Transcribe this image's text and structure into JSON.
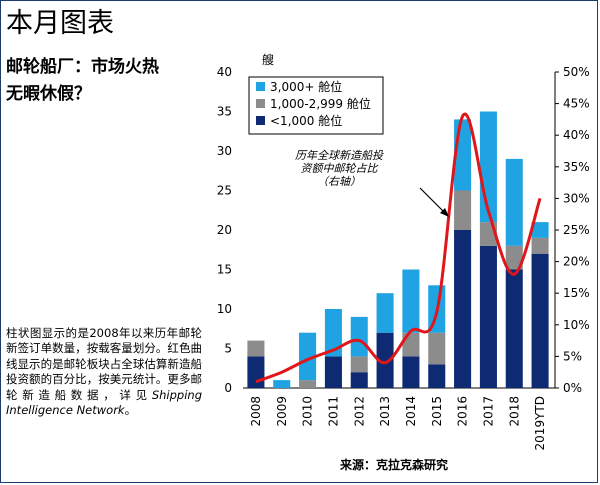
{
  "section_title": "本月图表",
  "headline": [
    "邮轮船厂：市场火热",
    "无暇休假？"
  ],
  "caption": {
    "text": "柱状图显示的是2008年以来历年邮轮新签订单数量，按载客量划分。红色曲线显示的是邮轮板块占全球估算新造船投资额的百分比，按美元统计。更多邮轮新造船数据，详见",
    "italic": "Shipping Intelligence Network",
    "end": "。"
  },
  "source": "来源：克拉克森研究",
  "colors": {
    "large": "#1fa3e3",
    "mid": "#8c8c8c",
    "small": "#0d2a73",
    "line": "#e0161b"
  },
  "chart_data": {
    "type": "bar",
    "stacked": true,
    "left_axis_unit": "艘",
    "categories": [
      "2008",
      "2009",
      "2010",
      "2011",
      "2012",
      "2013",
      "2014",
      "2015",
      "2016",
      "2017",
      "2018",
      "2019YTD"
    ],
    "ylim": [
      0,
      40
    ],
    "yticks": [
      "0",
      "5",
      "10",
      "15",
      "20",
      "25",
      "30",
      "35",
      "40"
    ],
    "y2lim": [
      0,
      50
    ],
    "y2ticks": [
      "0%",
      "5%",
      "10%",
      "15%",
      "20%",
      "25%",
      "30%",
      "35%",
      "40%",
      "45%",
      "50%"
    ],
    "series": [
      {
        "name": "<1,000 舱位",
        "values": [
          4,
          0,
          0,
          4,
          2,
          7,
          4,
          3,
          20,
          18,
          15,
          17
        ]
      },
      {
        "name": "1,000-2,999 舱位",
        "values": [
          2,
          0,
          1,
          0,
          2,
          0,
          3,
          4,
          5,
          3,
          3,
          2
        ]
      },
      {
        "name": "3,000+ 舱位",
        "values": [
          0,
          1,
          6,
          6,
          5,
          5,
          8,
          6,
          9,
          14,
          11,
          2
        ]
      }
    ],
    "line": {
      "values": [
        1,
        2.5,
        4.5,
        6,
        7.5,
        4,
        9,
        12,
        43,
        28,
        18,
        30
      ]
    },
    "annotation": [
      "历年全球新造船投",
      "资额中邮轮占比",
      "（右轴）"
    ],
    "legend_position": "top-left"
  }
}
